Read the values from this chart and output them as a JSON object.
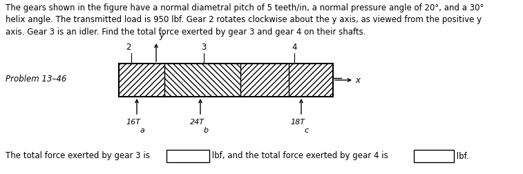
{
  "title_text": "The gears shown in the figure have a normal diametral pitch of 5 teeth/in, a normal pressure angle of 20°, and a 30°\nhelix angle. The transmitted load is 950 lbf. Gear 2 rotates clockwise about the y axis, as viewed from the positive y\naxis. Gear 3 is an idler. Find the total force exerted by gear 3 and gear 4 on their shafts.",
  "problem_label": "Problem 13–46",
  "bottom_text_1": "The total force exerted by gear 3 is ",
  "bottom_text_2": " lbf, and the total force exerted by gear 4 is ",
  "bottom_text_3": " lbf.",
  "gear_labels": [
    "2",
    "3",
    "4"
  ],
  "teeth_labels": [
    "16T",
    "24T",
    "18T"
  ],
  "bearing_labels": [
    "a",
    "b",
    "c"
  ],
  "y_axis_label": "y",
  "x_axis_label": "x",
  "background_color": "#ffffff",
  "font_size_title": 8.5,
  "font_size_label": 8.5,
  "font_size_small": 8.0
}
